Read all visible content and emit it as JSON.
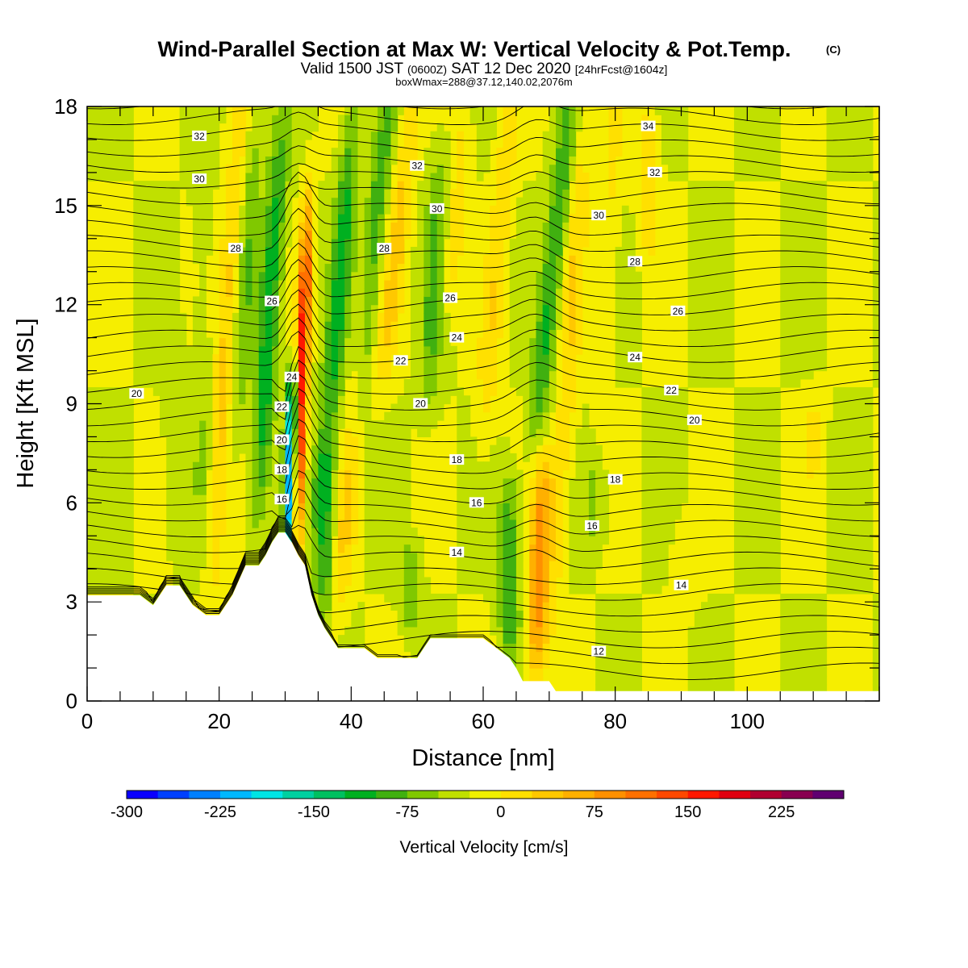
{
  "chart_data": {
    "type": "heatmap",
    "title": "Wind-Parallel Section at Max W: Vertical Velocity & Pot.Temp.",
    "title_mark": "(C)",
    "subtitle_parts": [
      "Valid 1500 JST",
      "(0600Z)",
      "SAT 12 Dec 2020",
      "[24hrFcst@1604z]"
    ],
    "subtitle2": "boxWmax=288@37.12,140.02,2076m",
    "xlabel": "Distance [nm]",
    "ylabel": "Height [Kft MSL]",
    "xlim": [
      0,
      120
    ],
    "ylim": [
      0,
      18
    ],
    "x_ticks": [
      0,
      20,
      40,
      60,
      80,
      100
    ],
    "y_ticks": [
      0,
      3,
      6,
      9,
      12,
      15,
      18
    ],
    "colorbar": {
      "title": "Vertical Velocity [cm/s]",
      "ticks": [
        "-300",
        "-225",
        "-150",
        "-75",
        "0",
        "75",
        "150",
        "225"
      ],
      "colors": [
        "#0a00ff",
        "#0040ff",
        "#0080ff",
        "#00b8ff",
        "#00e4e4",
        "#00d0a0",
        "#00c060",
        "#00b020",
        "#40b010",
        "#80c800",
        "#c0e000",
        "#f0f000",
        "#ffe000",
        "#ffc800",
        "#ffb000",
        "#ff9000",
        "#ff7000",
        "#ff4800",
        "#ff1800",
        "#e00010",
        "#b00030",
        "#880050",
        "#600070"
      ]
    },
    "terrain": [
      [
        0,
        3.2
      ],
      [
        2,
        3.2
      ],
      [
        4,
        3.2
      ],
      [
        6,
        3.2
      ],
      [
        8,
        3.2
      ],
      [
        10,
        2.9
      ],
      [
        12,
        3.5
      ],
      [
        14,
        3.5
      ],
      [
        16,
        2.9
      ],
      [
        18,
        2.6
      ],
      [
        20,
        2.6
      ],
      [
        22,
        3.2
      ],
      [
        24,
        4.1
      ],
      [
        26,
        4.1
      ],
      [
        27,
        4.4
      ],
      [
        28,
        4.8
      ],
      [
        29,
        5.1
      ],
      [
        30,
        5.1
      ],
      [
        31,
        4.8
      ],
      [
        32,
        4.4
      ],
      [
        33,
        4.1
      ],
      [
        34,
        3.2
      ],
      [
        35,
        2.6
      ],
      [
        36,
        2.2
      ],
      [
        37,
        1.9
      ],
      [
        38,
        1.6
      ],
      [
        40,
        1.6
      ],
      [
        42,
        1.6
      ],
      [
        44,
        1.3
      ],
      [
        46,
        1.3
      ],
      [
        48,
        1.3
      ],
      [
        50,
        1.3
      ],
      [
        51,
        1.6
      ],
      [
        52,
        1.9
      ],
      [
        54,
        1.9
      ],
      [
        56,
        1.9
      ],
      [
        58,
        1.9
      ],
      [
        60,
        1.9
      ],
      [
        62,
        1.6
      ],
      [
        64,
        1.3
      ],
      [
        65,
        1.0
      ],
      [
        66,
        0.6
      ],
      [
        68,
        0.6
      ],
      [
        70,
        0.6
      ],
      [
        71,
        0.3
      ],
      [
        72,
        0.3
      ],
      [
        76,
        0.3
      ],
      [
        80,
        0.3
      ],
      [
        84,
        0.3
      ],
      [
        88,
        0.3
      ],
      [
        92,
        0.3
      ],
      [
        96,
        0.3
      ],
      [
        100,
        0.3
      ],
      [
        104,
        0.3
      ],
      [
        108,
        0.3
      ],
      [
        112,
        0.3
      ],
      [
        116,
        0.3
      ],
      [
        120,
        0.3
      ]
    ],
    "w_features": [
      {
        "x": 32.5,
        "y0": 4.5,
        "y1": 14.5,
        "w": 190,
        "slant": 0.15
      },
      {
        "x": 30.8,
        "y0": 4.8,
        "y1": 9.5,
        "w": -200,
        "slant": 0.1
      },
      {
        "x": 27.5,
        "y0": 5.5,
        "y1": 17,
        "w": -90,
        "slant": 0.3
      },
      {
        "x": 21,
        "y0": 3,
        "y1": 18,
        "w": 60,
        "slant": 0.3
      },
      {
        "x": 24,
        "y0": 8,
        "y1": 18,
        "w": -45,
        "slant": 0.3
      },
      {
        "x": 17.5,
        "y0": 4,
        "y1": 16,
        "w": -20,
        "slant": 0
      },
      {
        "x": 13,
        "y0": 5,
        "y1": 11,
        "w": -20,
        "slant": 0
      },
      {
        "x": 38,
        "y0": 6,
        "y1": 18,
        "w": -80,
        "slant": 0.4
      },
      {
        "x": 36,
        "y0": 3,
        "y1": 7,
        "w": -70,
        "slant": 0
      },
      {
        "x": 43,
        "y0": 8,
        "y1": 18,
        "w": -70,
        "slant": 0.5
      },
      {
        "x": 40,
        "y0": 3,
        "y1": 12,
        "w": 55,
        "slant": 0.4
      },
      {
        "x": 47,
        "y0": 10,
        "y1": 18,
        "w": 55,
        "slant": 0.5
      },
      {
        "x": 52.5,
        "y0": 9,
        "y1": 16.5,
        "w": -50,
        "slant": 0.2
      },
      {
        "x": 49,
        "y0": 2.5,
        "y1": 4.5,
        "w": -40,
        "slant": 0
      },
      {
        "x": 56,
        "y0": 12,
        "y1": 18,
        "w": 35,
        "slant": 0.4
      },
      {
        "x": 62,
        "y0": 8,
        "y1": 18,
        "w": 45,
        "slant": 0.4
      },
      {
        "x": 64,
        "y0": 1.5,
        "y1": 6.5,
        "w": -70,
        "slant": 0
      },
      {
        "x": 68.5,
        "y0": 1,
        "y1": 7,
        "w": 110,
        "slant": 0.2
      },
      {
        "x": 70.5,
        "y0": 8,
        "y1": 18,
        "w": -80,
        "slant": 0.5
      },
      {
        "x": 73,
        "y0": 3,
        "y1": 18,
        "w": 45,
        "slant": 0.3
      },
      {
        "x": 77,
        "y0": 5,
        "y1": 7,
        "w": -30,
        "slant": 0
      },
      {
        "x": 79,
        "y0": 10,
        "y1": 18,
        "w": 30,
        "slant": 0.2
      },
      {
        "x": 85,
        "y0": 14,
        "y1": 18,
        "w": 40,
        "slant": 0
      },
      {
        "x": 90,
        "y0": 3,
        "y1": 5,
        "w": 25,
        "slant": 0
      },
      {
        "x": 110,
        "y0": 7,
        "y1": 9,
        "w": 25,
        "slant": 0
      }
    ],
    "contour_labels": [
      {
        "text": "32",
        "x": 17,
        "y": 17.1
      },
      {
        "text": "30",
        "x": 17,
        "y": 15.8
      },
      {
        "text": "28",
        "x": 22.5,
        "y": 13.7
      },
      {
        "text": "26",
        "x": 28,
        "y": 12.1
      },
      {
        "text": "24",
        "x": 31,
        "y": 9.8
      },
      {
        "text": "22",
        "x": 29.5,
        "y": 8.9
      },
      {
        "text": "20",
        "x": 29.5,
        "y": 7.9
      },
      {
        "text": "18",
        "x": 29.5,
        "y": 7.0
      },
      {
        "text": "16",
        "x": 29.5,
        "y": 6.1
      },
      {
        "text": "20",
        "x": 7.5,
        "y": 9.3
      },
      {
        "text": "32",
        "x": 50,
        "y": 16.2
      },
      {
        "text": "30",
        "x": 53,
        "y": 14.9
      },
      {
        "text": "28",
        "x": 45,
        "y": 13.7
      },
      {
        "text": "26",
        "x": 55,
        "y": 12.2
      },
      {
        "text": "24",
        "x": 56,
        "y": 11.0
      },
      {
        "text": "22",
        "x": 47.5,
        "y": 10.3
      },
      {
        "text": "20",
        "x": 50.5,
        "y": 9.0
      },
      {
        "text": "18",
        "x": 56,
        "y": 7.3
      },
      {
        "text": "16",
        "x": 59,
        "y": 6.0
      },
      {
        "text": "14",
        "x": 56,
        "y": 4.5
      },
      {
        "text": "34",
        "x": 85,
        "y": 17.4
      },
      {
        "text": "32",
        "x": 86,
        "y": 16.0
      },
      {
        "text": "30",
        "x": 77.5,
        "y": 14.7
      },
      {
        "text": "28",
        "x": 83,
        "y": 13.3
      },
      {
        "text": "26",
        "x": 89.5,
        "y": 11.8
      },
      {
        "text": "24",
        "x": 83,
        "y": 10.4
      },
      {
        "text": "22",
        "x": 88.5,
        "y": 9.4
      },
      {
        "text": "20",
        "x": 92,
        "y": 8.5
      },
      {
        "text": "18",
        "x": 80,
        "y": 6.7
      },
      {
        "text": "16",
        "x": 76.5,
        "y": 5.3
      },
      {
        "text": "14",
        "x": 90,
        "y": 3.5
      },
      {
        "text": "12",
        "x": 77.5,
        "y": 1.5
      }
    ]
  }
}
